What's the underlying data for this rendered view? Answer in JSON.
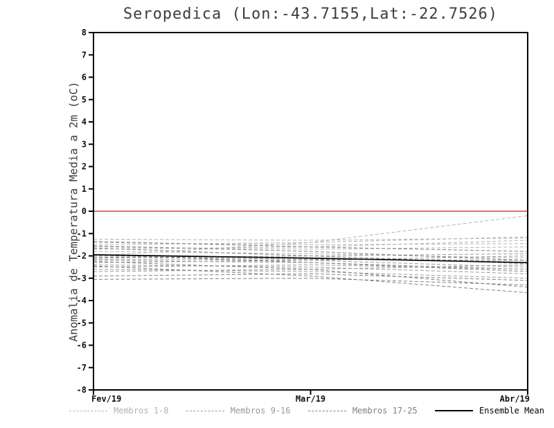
{
  "chart_data": {
    "type": "line",
    "title": "Seropedica (Lon:-43.7155,Lat:-22.7526)",
    "ylabel": "Anomalia de Temperatura Media a 2m (oC)",
    "xlabel": "",
    "ylim": [
      -8,
      8
    ],
    "y_ticks": [
      8,
      7,
      6,
      5,
      4,
      3,
      2,
      1,
      0,
      -1,
      -2,
      -3,
      -4,
      -5,
      -6,
      -7,
      -8
    ],
    "x_ticks": [
      "Fev/19",
      "Mar/19",
      "Abr/19"
    ],
    "grid": false,
    "legend_position": "bottom",
    "zero_line": {
      "value": 0,
      "color": "#ee3333"
    },
    "groups": [
      {
        "name": "Membros 1-8",
        "color": "#b3b3b3",
        "style": "dashed",
        "series": [
          [
            -1.25,
            -1.3,
            -1.2
          ],
          [
            -1.4,
            -1.5,
            -1.45
          ],
          [
            -1.5,
            -1.4,
            -1.15
          ],
          [
            -1.6,
            -1.7,
            -1.6
          ],
          [
            -1.7,
            -1.6,
            -1.3
          ],
          [
            -1.8,
            -1.9,
            -2.1
          ],
          [
            -2.0,
            -1.4,
            -0.2
          ],
          [
            -2.0,
            -2.1,
            -2.3
          ]
        ]
      },
      {
        "name": "Membros 9-16",
        "color": "#999999",
        "style": "dashed",
        "series": [
          [
            -2.1,
            -2.0,
            -1.9
          ],
          [
            -2.15,
            -2.2,
            -2.5
          ],
          [
            -2.2,
            -2.3,
            -2.6
          ],
          [
            -2.3,
            -2.2,
            -2.0
          ],
          [
            -2.4,
            -2.5,
            -2.8
          ],
          [
            -2.5,
            -2.4,
            -2.6
          ],
          [
            -2.6,
            -2.7,
            -3.0
          ],
          [
            -2.7,
            -2.6,
            -2.4
          ]
        ]
      },
      {
        "name": "Membros 17-25",
        "color": "#808080",
        "style": "dashed",
        "series": [
          [
            -2.9,
            -2.8,
            -3.1
          ],
          [
            -3.05,
            -3.0,
            -3.3
          ],
          [
            -1.35,
            -1.6,
            -1.8
          ],
          [
            -1.55,
            -1.8,
            -2.2
          ],
          [
            -1.95,
            -2.3,
            -2.7
          ],
          [
            -2.25,
            -2.6,
            -3.4
          ],
          [
            -2.45,
            -2.9,
            -3.65
          ],
          [
            -1.65,
            -2.0,
            -2.35
          ],
          [
            -2.05,
            -2.15,
            -2.2
          ]
        ]
      },
      {
        "name": "Ensemble Mean",
        "color": "#000000",
        "style": "solid",
        "series": [
          [
            -1.95,
            -2.1,
            -2.3
          ]
        ]
      }
    ]
  }
}
